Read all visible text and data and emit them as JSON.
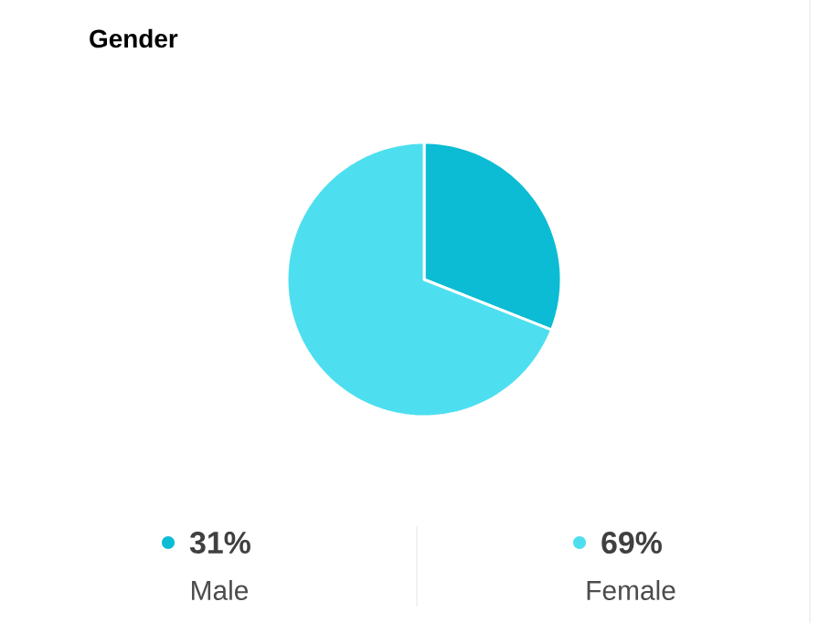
{
  "chart_data": {
    "type": "pie",
    "title": "Gender",
    "categories": [
      "Male",
      "Female"
    ],
    "values": [
      31,
      69
    ],
    "value_labels": [
      "31%",
      "69%"
    ],
    "colors": [
      "#0bbcd4",
      "#4ddfef"
    ],
    "legend": "bottom"
  }
}
